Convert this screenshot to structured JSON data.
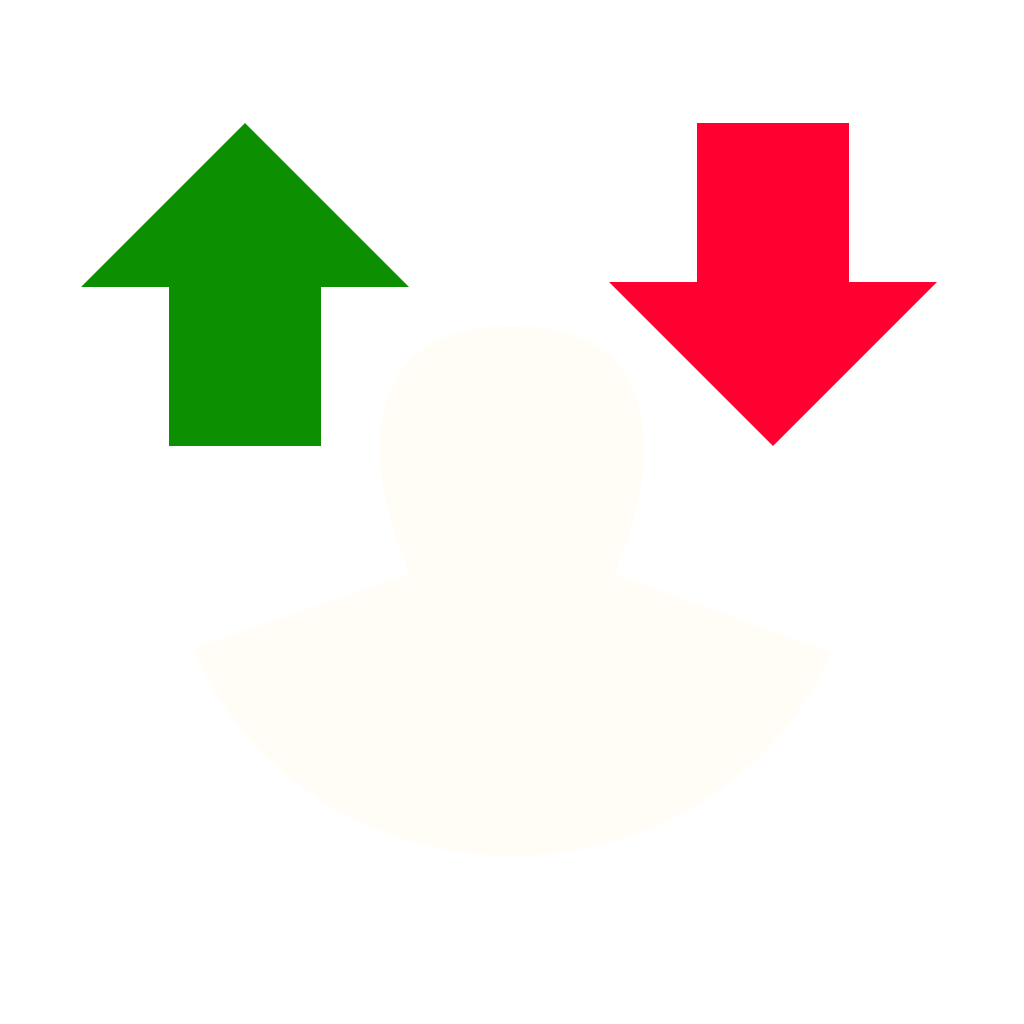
{
  "icon": {
    "user": {
      "icon": "user-silhouette-icon",
      "color": "#fffdf5"
    },
    "up_arrow": {
      "icon": "arrow-up-icon",
      "color": "#0c9002"
    },
    "down_arrow": {
      "icon": "arrow-down-icon",
      "color": "#ff0030"
    }
  },
  "background": "#ffffff"
}
